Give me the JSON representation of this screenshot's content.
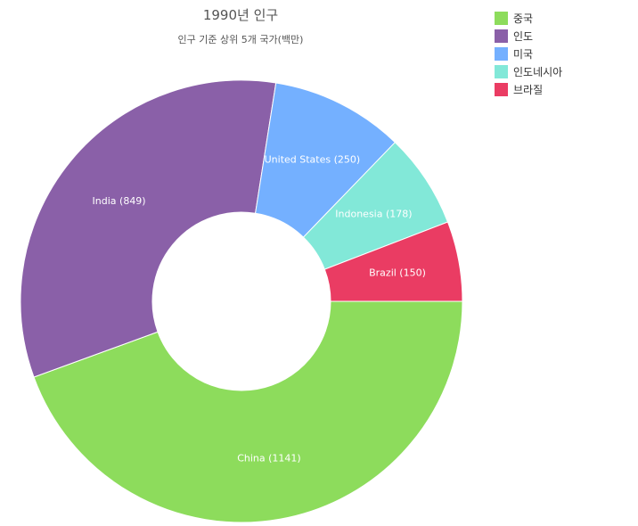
{
  "chart_data": {
    "type": "pie",
    "title": "1990년 인구",
    "subtitle": "인구 기준 상위 5개 국가(백만)",
    "donut": true,
    "legend_position": "top-right",
    "slices": [
      {
        "legend": "중국",
        "label": "China (1141)",
        "value": 1141,
        "color": "#8ddc5c"
      },
      {
        "legend": "인도",
        "label": "India (849)",
        "value": 849,
        "color": "#8a60a8"
      },
      {
        "legend": "미국",
        "label": "United States (250)",
        "value": 250,
        "color": "#74b0ff"
      },
      {
        "legend": "인도네시아",
        "label": "Indonesia (178)",
        "value": 178,
        "color": "#82e8d8"
      },
      {
        "legend": "브라질",
        "label": "Brazil (150)",
        "value": 150,
        "color": "#ea3c63"
      }
    ]
  }
}
